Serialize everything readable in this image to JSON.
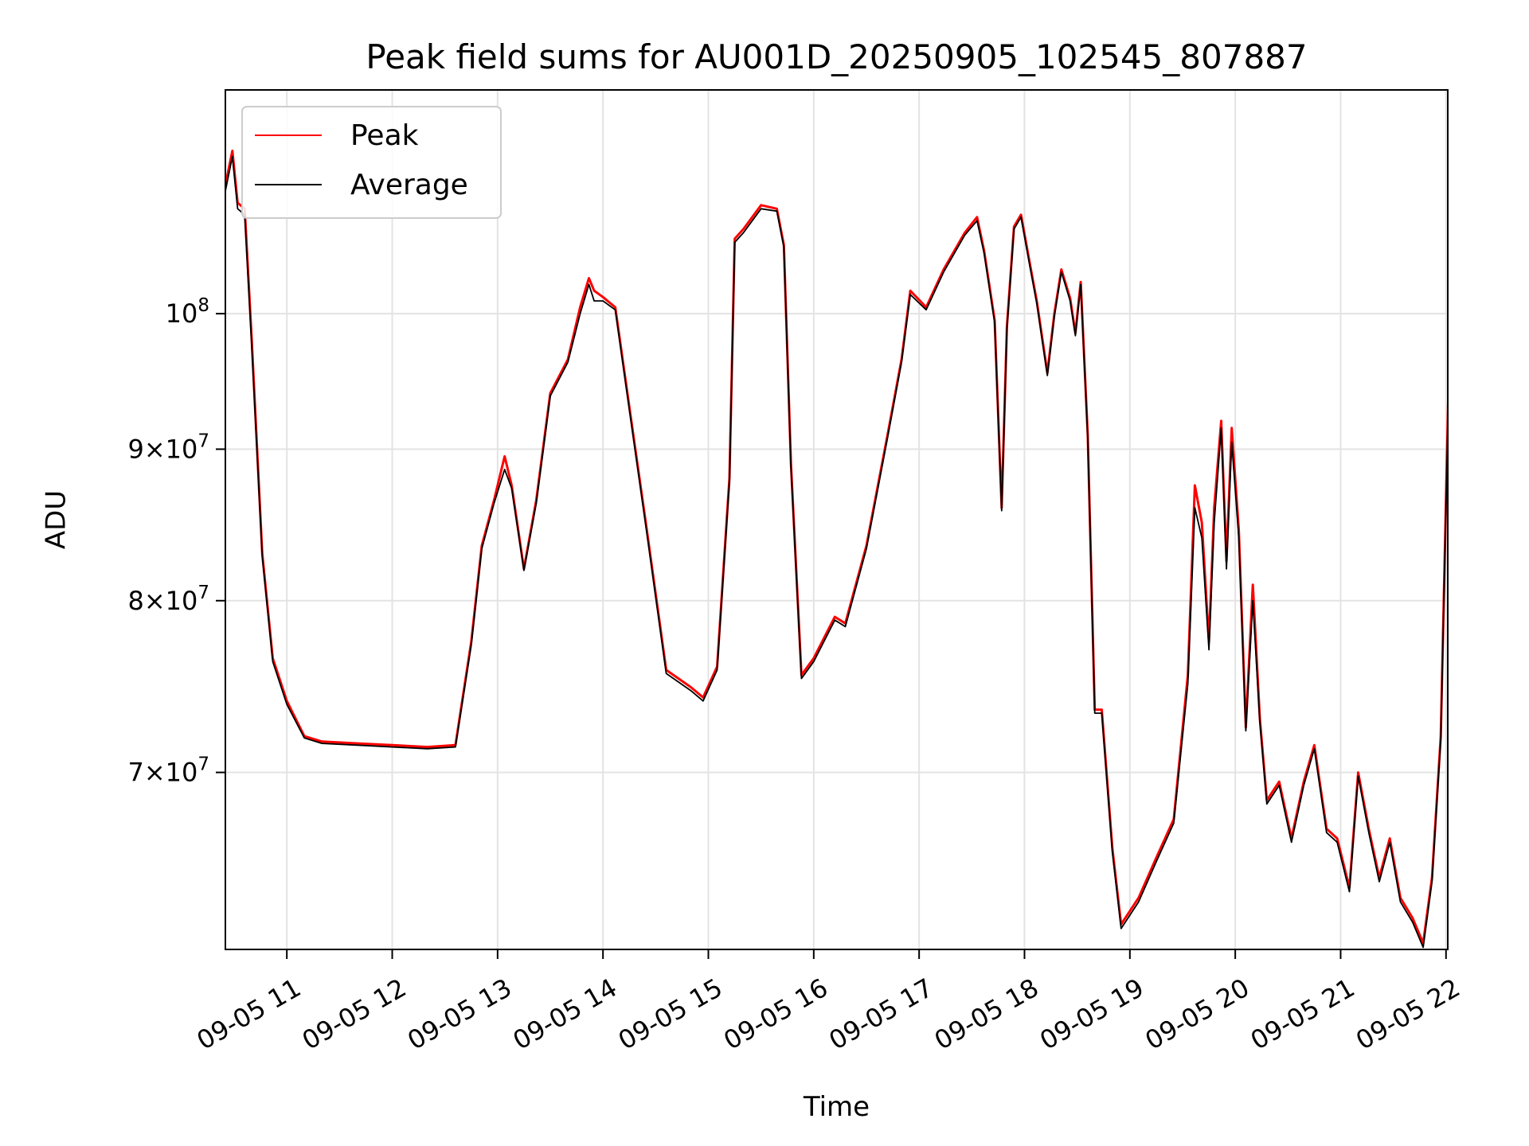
{
  "chart_data": {
    "type": "line",
    "title": "Peak field sums for AU001D_20250905_102545_807887",
    "xlabel": "Time",
    "ylabel": "ADU",
    "yscale": "log",
    "ylim": [
      61000000,
      119000000
    ],
    "xlim": [
      "2025-09-05 10:25",
      "2025-09-05 22:01"
    ],
    "grid": true,
    "legend": "top-left",
    "x_ticks": [
      {
        "value": "2025-09-05 11:00",
        "label": "09-05 11"
      },
      {
        "value": "2025-09-05 12:00",
        "label": "09-05 12"
      },
      {
        "value": "2025-09-05 13:00",
        "label": "09-05 13"
      },
      {
        "value": "2025-09-05 14:00",
        "label": "09-05 14"
      },
      {
        "value": "2025-09-05 15:00",
        "label": "09-05 15"
      },
      {
        "value": "2025-09-05 16:00",
        "label": "09-05 16"
      },
      {
        "value": "2025-09-05 17:00",
        "label": "09-05 17"
      },
      {
        "value": "2025-09-05 18:00",
        "label": "09-05 18"
      },
      {
        "value": "2025-09-05 19:00",
        "label": "09-05 19"
      },
      {
        "value": "2025-09-05 20:00",
        "label": "09-05 20"
      },
      {
        "value": "2025-09-05 21:00",
        "label": "09-05 21"
      },
      {
        "value": "2025-09-05 22:00",
        "label": "09-05 22"
      }
    ],
    "y_ticks": [
      {
        "value": 70000000,
        "mantissa": "7",
        "exponent": "7"
      },
      {
        "value": 80000000,
        "mantissa": "8",
        "exponent": "7"
      },
      {
        "value": 90000000,
        "mantissa": "9",
        "exponent": "7"
      },
      {
        "value": 100000000,
        "mantissa": "",
        "exponent": "8"
      }
    ],
    "series": [
      {
        "name": "Peak",
        "color": "#ff0000",
        "points": [
          [
            "2025-09-05 10:25",
            110500000
          ],
          [
            "2025-09-05 10:29",
            113500000
          ],
          [
            "2025-09-05 10:32",
            109000000
          ],
          [
            "2025-09-05 10:36",
            108500000
          ],
          [
            "2025-09-05 10:40",
            98000000
          ],
          [
            "2025-09-05 10:46",
            83000000
          ],
          [
            "2025-09-05 10:52",
            76500000
          ],
          [
            "2025-09-05 11:00",
            74000000
          ],
          [
            "2025-09-05 11:10",
            72000000
          ],
          [
            "2025-09-05 11:20",
            71700000
          ],
          [
            "2025-09-05 11:40",
            71600000
          ],
          [
            "2025-09-05 12:00",
            71500000
          ],
          [
            "2025-09-05 12:20",
            71400000
          ],
          [
            "2025-09-05 12:36",
            71500000
          ],
          [
            "2025-09-05 12:45",
            77500000
          ],
          [
            "2025-09-05 12:51",
            83500000
          ],
          [
            "2025-09-05 12:58",
            86500000
          ],
          [
            "2025-09-05 13:04",
            89500000
          ],
          [
            "2025-09-05 13:08",
            87500000
          ],
          [
            "2025-09-05 13:15",
            82000000
          ],
          [
            "2025-09-05 13:22",
            86500000
          ],
          [
            "2025-09-05 13:30",
            94000000
          ],
          [
            "2025-09-05 13:40",
            96500000
          ],
          [
            "2025-09-05 13:47",
            100500000
          ],
          [
            "2025-09-05 13:52",
            102800000
          ],
          [
            "2025-09-05 13:55",
            101800000
          ],
          [
            "2025-09-05 14:00",
            101300000
          ],
          [
            "2025-09-05 14:07",
            100500000
          ],
          [
            "2025-09-05 14:15",
            93000000
          ],
          [
            "2025-09-05 14:25",
            84500000
          ],
          [
            "2025-09-05 14:36",
            75800000
          ],
          [
            "2025-09-05 14:50",
            74800000
          ],
          [
            "2025-09-05 14:57",
            74200000
          ],
          [
            "2025-09-05 15:05",
            76000000
          ],
          [
            "2025-09-05 15:12",
            88000000
          ],
          [
            "2025-09-05 15:15",
            106000000
          ],
          [
            "2025-09-05 15:20",
            106800000
          ],
          [
            "2025-09-05 15:30",
            108800000
          ],
          [
            "2025-09-05 15:39",
            108500000
          ],
          [
            "2025-09-05 15:43",
            105500000
          ],
          [
            "2025-09-05 15:47",
            89000000
          ],
          [
            "2025-09-05 15:53",
            75500000
          ],
          [
            "2025-09-05 16:00",
            76500000
          ],
          [
            "2025-09-05 16:12",
            79000000
          ],
          [
            "2025-09-05 16:18",
            78600000
          ],
          [
            "2025-09-05 16:30",
            83500000
          ],
          [
            "2025-09-05 16:42",
            91000000
          ],
          [
            "2025-09-05 16:50",
            96500000
          ],
          [
            "2025-09-05 16:55",
            101800000
          ],
          [
            "2025-09-05 17:04",
            100500000
          ],
          [
            "2025-09-05 17:14",
            103500000
          ],
          [
            "2025-09-05 17:26",
            106500000
          ],
          [
            "2025-09-05 17:33",
            107800000
          ],
          [
            "2025-09-05 17:37",
            105000000
          ],
          [
            "2025-09-05 17:43",
            99500000
          ],
          [
            "2025-09-05 17:47",
            86000000
          ],
          [
            "2025-09-05 17:50",
            99000000
          ],
          [
            "2025-09-05 17:54",
            107000000
          ],
          [
            "2025-09-05 17:58",
            108000000
          ],
          [
            "2025-09-05 18:03",
            104000000
          ],
          [
            "2025-09-05 18:07",
            101000000
          ],
          [
            "2025-09-05 18:13",
            95500000
          ],
          [
            "2025-09-05 18:17",
            100000000
          ],
          [
            "2025-09-05 18:21",
            103500000
          ],
          [
            "2025-09-05 18:26",
            101200000
          ],
          [
            "2025-09-05 18:29",
            98500000
          ],
          [
            "2025-09-05 18:32",
            102500000
          ],
          [
            "2025-09-05 18:36",
            91000000
          ],
          [
            "2025-09-05 18:40",
            73500000
          ],
          [
            "2025-09-05 18:44",
            73500000
          ],
          [
            "2025-09-05 18:50",
            66000000
          ],
          [
            "2025-09-05 18:55",
            62200000
          ],
          [
            "2025-09-05 19:05",
            63500000
          ],
          [
            "2025-09-05 19:15",
            65500000
          ],
          [
            "2025-09-05 19:25",
            67500000
          ],
          [
            "2025-09-05 19:33",
            75500000
          ],
          [
            "2025-09-05 19:37",
            87500000
          ],
          [
            "2025-09-05 19:41",
            85000000
          ],
          [
            "2025-09-05 19:45",
            77500000
          ],
          [
            "2025-09-05 19:48",
            86000000
          ],
          [
            "2025-09-05 19:52",
            92000000
          ],
          [
            "2025-09-05 19:55",
            82500000
          ],
          [
            "2025-09-05 19:58",
            91500000
          ],
          [
            "2025-09-05 20:02",
            84500000
          ],
          [
            "2025-09-05 20:06",
            72500000
          ],
          [
            "2025-09-05 20:10",
            81000000
          ],
          [
            "2025-09-05 20:14",
            73000000
          ],
          [
            "2025-09-05 20:18",
            68500000
          ],
          [
            "2025-09-05 20:25",
            69500000
          ],
          [
            "2025-09-05 20:32",
            66500000
          ],
          [
            "2025-09-05 20:39",
            69500000
          ],
          [
            "2025-09-05 20:45",
            71500000
          ],
          [
            "2025-09-05 20:52",
            67000000
          ],
          [
            "2025-09-05 20:58",
            66500000
          ],
          [
            "2025-09-05 21:05",
            64000000
          ],
          [
            "2025-09-05 21:10",
            70000000
          ],
          [
            "2025-09-05 21:16",
            67000000
          ],
          [
            "2025-09-05 21:22",
            64500000
          ],
          [
            "2025-09-05 21:28",
            66500000
          ],
          [
            "2025-09-05 21:34",
            63500000
          ],
          [
            "2025-09-05 21:41",
            62500000
          ],
          [
            "2025-09-05 21:47",
            61300000
          ],
          [
            "2025-09-05 21:52",
            64500000
          ],
          [
            "2025-09-05 21:57",
            72000000
          ],
          [
            "2025-09-05 22:02",
            98000000
          ],
          [
            "2025-09-05 22:05",
            116000000
          ],
          [
            "2025-09-05 22:10",
            119000000
          ],
          [
            "2025-09-05 22:14",
            116000000
          ],
          [
            "2025-09-05 22:18",
            117000000
          ],
          [
            "2025-09-05 22:22",
            116000000
          ]
        ]
      },
      {
        "name": "Average",
        "color": "#000000",
        "points": [
          [
            "2025-09-05 10:25",
            110000000
          ],
          [
            "2025-09-05 10:29",
            113000000
          ],
          [
            "2025-09-05 10:32",
            108500000
          ],
          [
            "2025-09-05 10:36",
            108000000
          ],
          [
            "2025-09-05 10:40",
            97500000
          ],
          [
            "2025-09-05 10:46",
            82800000
          ],
          [
            "2025-09-05 10:52",
            76300000
          ],
          [
            "2025-09-05 11:00",
            73800000
          ],
          [
            "2025-09-05 11:10",
            71900000
          ],
          [
            "2025-09-05 11:20",
            71600000
          ],
          [
            "2025-09-05 11:40",
            71500000
          ],
          [
            "2025-09-05 12:00",
            71400000
          ],
          [
            "2025-09-05 12:20",
            71300000
          ],
          [
            "2025-09-05 12:36",
            71400000
          ],
          [
            "2025-09-05 12:45",
            77300000
          ],
          [
            "2025-09-05 12:51",
            83300000
          ],
          [
            "2025-09-05 12:58",
            86300000
          ],
          [
            "2025-09-05 13:04",
            88600000
          ],
          [
            "2025-09-05 13:08",
            87300000
          ],
          [
            "2025-09-05 13:15",
            81900000
          ],
          [
            "2025-09-05 13:22",
            86300000
          ],
          [
            "2025-09-05 13:30",
            93800000
          ],
          [
            "2025-09-05 13:40",
            96300000
          ],
          [
            "2025-09-05 13:47",
            100000000
          ],
          [
            "2025-09-05 13:52",
            102300000
          ],
          [
            "2025-09-05 13:55",
            101000000
          ],
          [
            "2025-09-05 14:00",
            101000000
          ],
          [
            "2025-09-05 14:07",
            100300000
          ],
          [
            "2025-09-05 14:15",
            92800000
          ],
          [
            "2025-09-05 14:25",
            84300000
          ],
          [
            "2025-09-05 14:36",
            75600000
          ],
          [
            "2025-09-05 14:50",
            74600000
          ],
          [
            "2025-09-05 14:57",
            74000000
          ],
          [
            "2025-09-05 15:05",
            75800000
          ],
          [
            "2025-09-05 15:12",
            87800000
          ],
          [
            "2025-09-05 15:15",
            105700000
          ],
          [
            "2025-09-05 15:20",
            106500000
          ],
          [
            "2025-09-05 15:30",
            108500000
          ],
          [
            "2025-09-05 15:39",
            108300000
          ],
          [
            "2025-09-05 15:43",
            105300000
          ],
          [
            "2025-09-05 15:47",
            88800000
          ],
          [
            "2025-09-05 15:53",
            75300000
          ],
          [
            "2025-09-05 16:00",
            76300000
          ],
          [
            "2025-09-05 16:12",
            78800000
          ],
          [
            "2025-09-05 16:18",
            78400000
          ],
          [
            "2025-09-05 16:30",
            83300000
          ],
          [
            "2025-09-05 16:42",
            90800000
          ],
          [
            "2025-09-05 16:50",
            96300000
          ],
          [
            "2025-09-05 16:55",
            101500000
          ],
          [
            "2025-09-05 17:04",
            100300000
          ],
          [
            "2025-09-05 17:14",
            103300000
          ],
          [
            "2025-09-05 17:26",
            106300000
          ],
          [
            "2025-09-05 17:33",
            107500000
          ],
          [
            "2025-09-05 17:37",
            104800000
          ],
          [
            "2025-09-05 17:43",
            99300000
          ],
          [
            "2025-09-05 17:47",
            85800000
          ],
          [
            "2025-09-05 17:50",
            98800000
          ],
          [
            "2025-09-05 17:54",
            106800000
          ],
          [
            "2025-09-05 17:58",
            107800000
          ],
          [
            "2025-09-05 18:03",
            103800000
          ],
          [
            "2025-09-05 18:07",
            100800000
          ],
          [
            "2025-09-05 18:13",
            95300000
          ],
          [
            "2025-09-05 18:17",
            99800000
          ],
          [
            "2025-09-05 18:21",
            103300000
          ],
          [
            "2025-09-05 18:26",
            101000000
          ],
          [
            "2025-09-05 18:29",
            98300000
          ],
          [
            "2025-09-05 18:32",
            102300000
          ],
          [
            "2025-09-05 18:36",
            90800000
          ],
          [
            "2025-09-05 18:40",
            73300000
          ],
          [
            "2025-09-05 18:44",
            73300000
          ],
          [
            "2025-09-05 18:50",
            65800000
          ],
          [
            "2025-09-05 18:55",
            62000000
          ],
          [
            "2025-09-05 19:05",
            63300000
          ],
          [
            "2025-09-05 19:15",
            65300000
          ],
          [
            "2025-09-05 19:25",
            67300000
          ],
          [
            "2025-09-05 19:33",
            75000000
          ],
          [
            "2025-09-05 19:37",
            86000000
          ],
          [
            "2025-09-05 19:41",
            84000000
          ],
          [
            "2025-09-05 19:45",
            77000000
          ],
          [
            "2025-09-05 19:48",
            85000000
          ],
          [
            "2025-09-05 19:52",
            91500000
          ],
          [
            "2025-09-05 19:55",
            82000000
          ],
          [
            "2025-09-05 19:58",
            90500000
          ],
          [
            "2025-09-05 20:02",
            84000000
          ],
          [
            "2025-09-05 20:06",
            72300000
          ],
          [
            "2025-09-05 20:10",
            80000000
          ],
          [
            "2025-09-05 20:14",
            72800000
          ],
          [
            "2025-09-05 20:18",
            68300000
          ],
          [
            "2025-09-05 20:25",
            69300000
          ],
          [
            "2025-09-05 20:32",
            66300000
          ],
          [
            "2025-09-05 20:39",
            69300000
          ],
          [
            "2025-09-05 20:45",
            71300000
          ],
          [
            "2025-09-05 20:52",
            66800000
          ],
          [
            "2025-09-05 20:58",
            66300000
          ],
          [
            "2025-09-05 21:05",
            63800000
          ],
          [
            "2025-09-05 21:10",
            69800000
          ],
          [
            "2025-09-05 21:16",
            66800000
          ],
          [
            "2025-09-05 21:22",
            64300000
          ],
          [
            "2025-09-05 21:28",
            66300000
          ],
          [
            "2025-09-05 21:34",
            63300000
          ],
          [
            "2025-09-05 21:41",
            62300000
          ],
          [
            "2025-09-05 21:47",
            61100000
          ],
          [
            "2025-09-05 21:52",
            64300000
          ],
          [
            "2025-09-05 21:57",
            71800000
          ],
          [
            "2025-09-05 22:02",
            97500000
          ],
          [
            "2025-09-05 22:05",
            115500000
          ],
          [
            "2025-09-05 22:10",
            118500000
          ],
          [
            "2025-09-05 22:14",
            115500000
          ],
          [
            "2025-09-05 22:18",
            116500000
          ],
          [
            "2025-09-05 22:22",
            115500000
          ]
        ]
      }
    ]
  }
}
